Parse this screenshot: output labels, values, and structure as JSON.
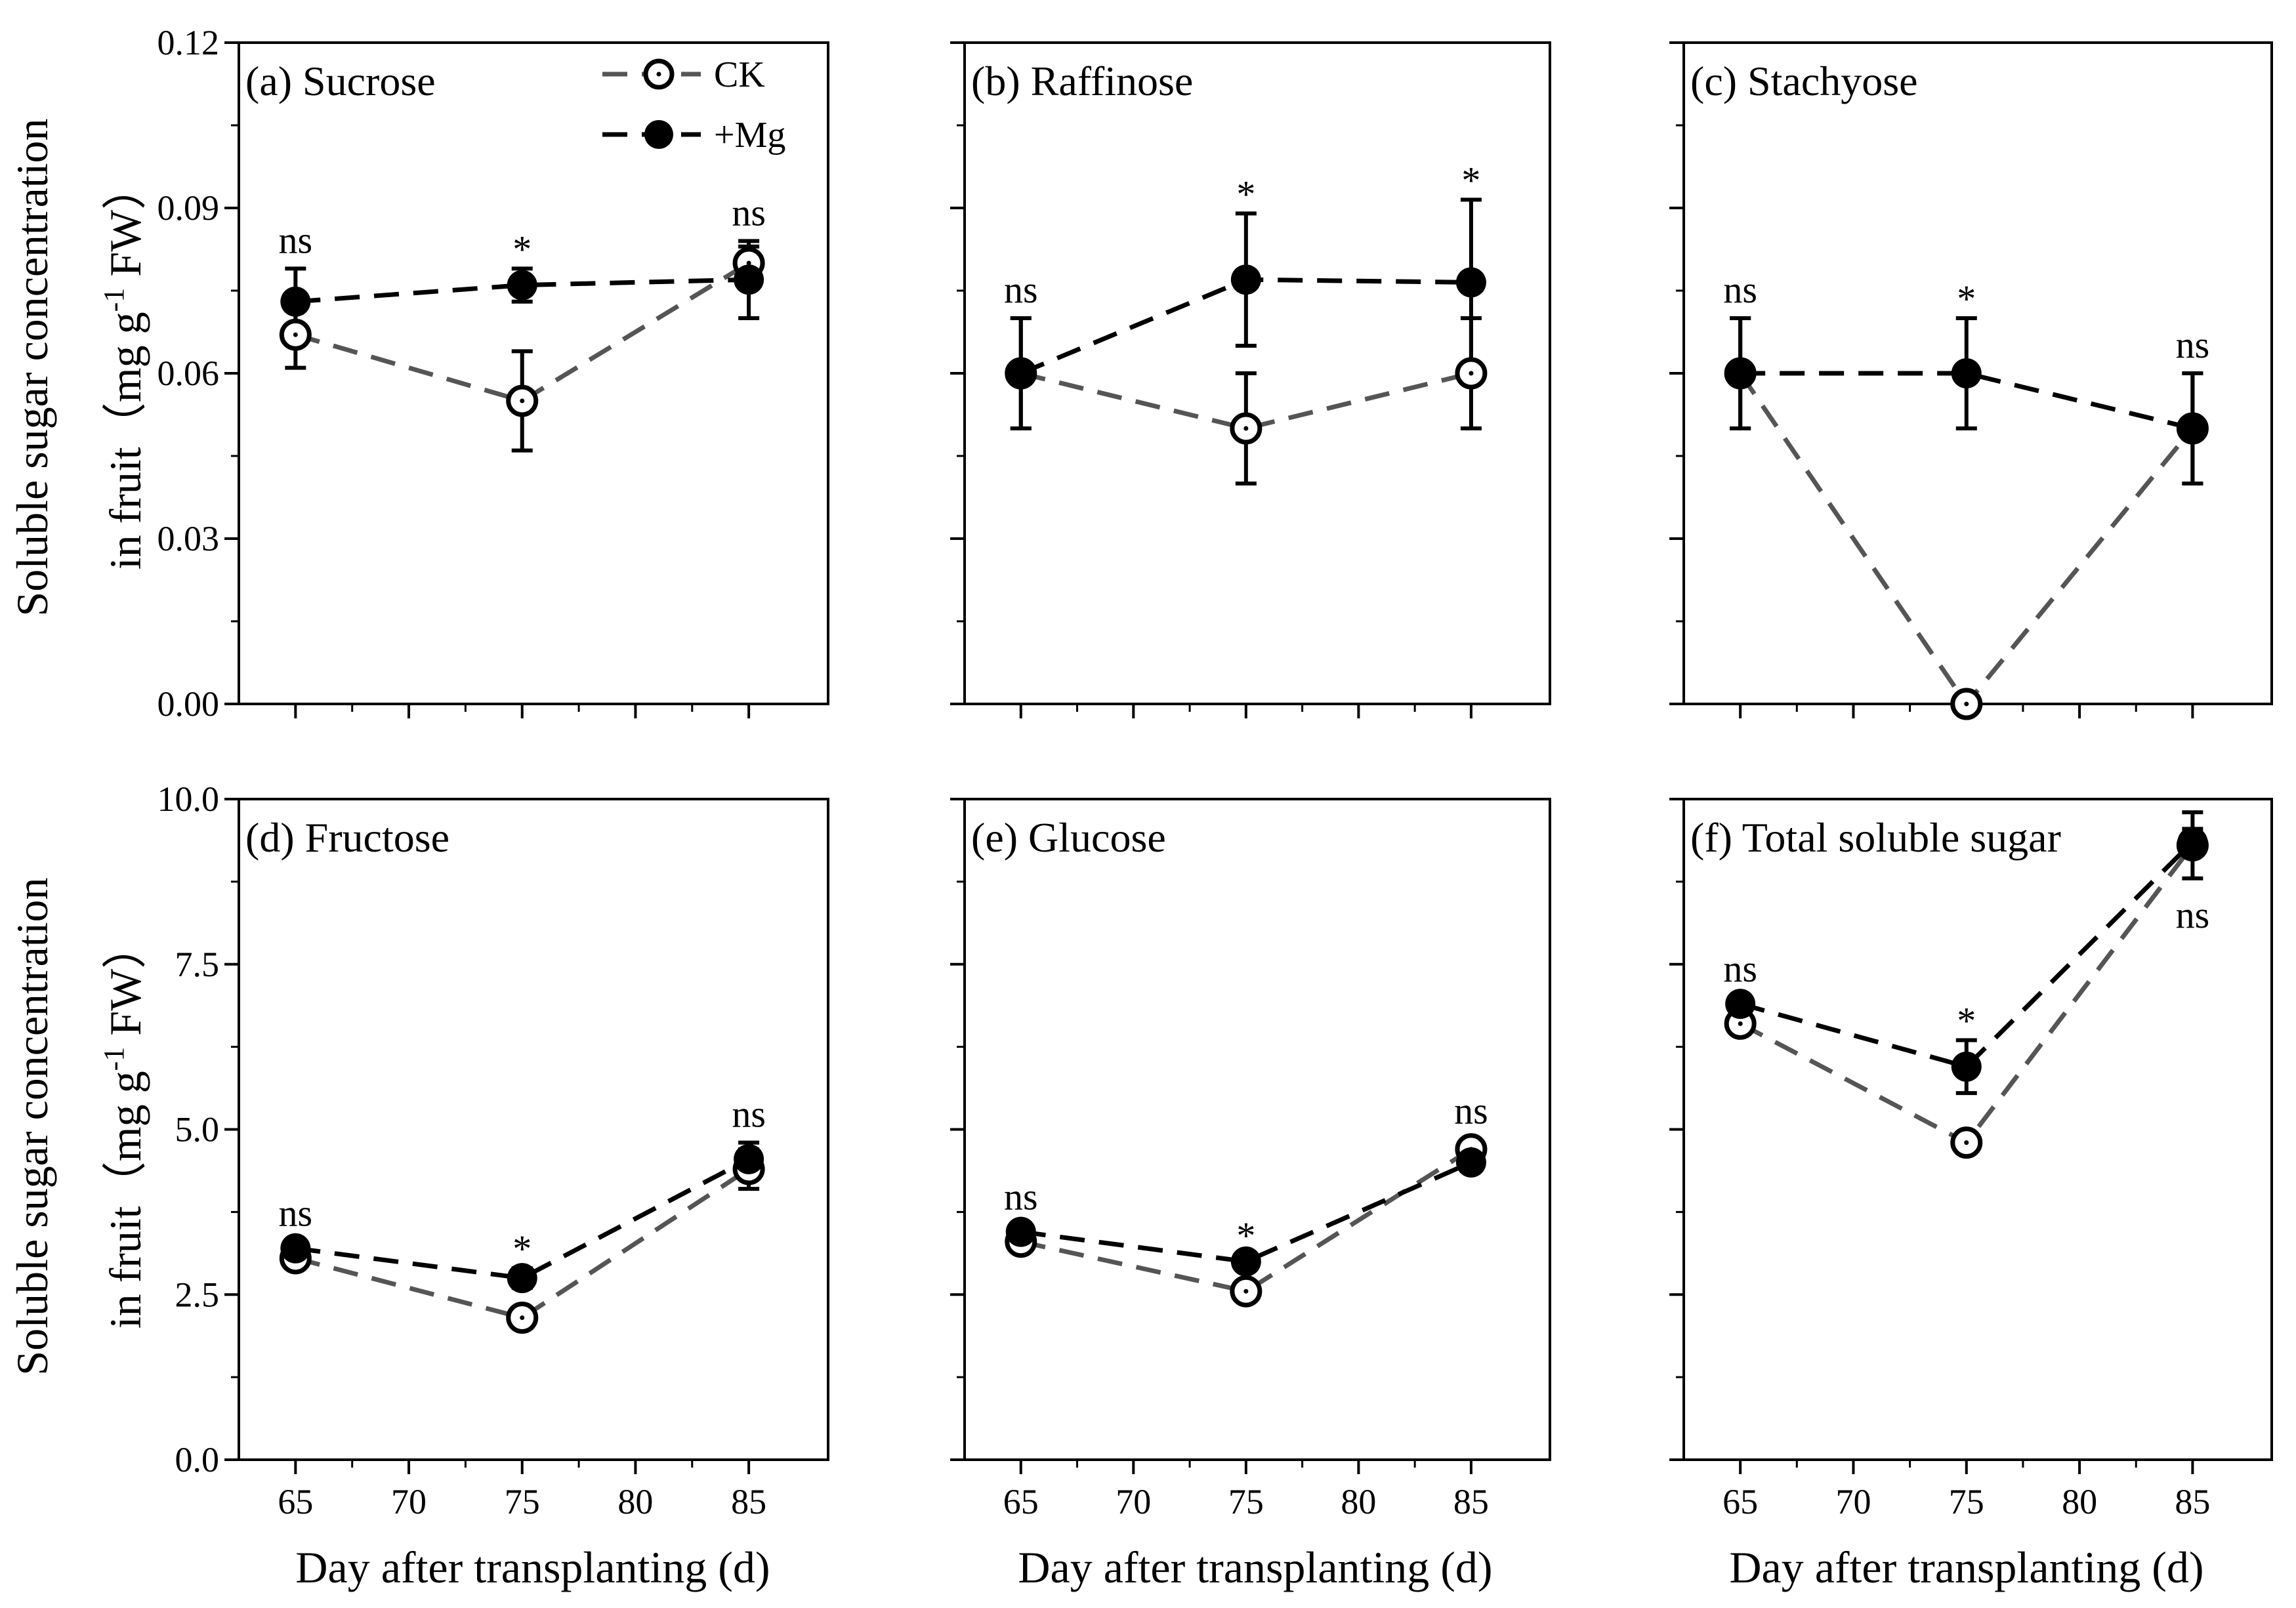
{
  "figure": {
    "ylabel_top": [
      "Soluble sugar concentration",
      "in fruit（mg g",
      "-1",
      " FW）"
    ],
    "ylabel_bottom": [
      "Soluble sugar concentration",
      "in fruit（mg g",
      "-1",
      " FW）"
    ],
    "xlabel": "Day after transplanting (d)",
    "legend": [
      {
        "name": "CK",
        "marker": "open-circle",
        "color": "#555555"
      },
      {
        "name": "+Mg",
        "marker": "filled-circle",
        "color": "#000000"
      }
    ],
    "colors": {
      "ck": "#555555",
      "mg": "#000000",
      "axis": "#000000"
    }
  },
  "chart_data": [
    {
      "id": "a",
      "type": "line",
      "title": "(a) Sucrose",
      "x": [
        65,
        75,
        85
      ],
      "xticks": [
        65,
        70,
        75,
        80,
        85
      ],
      "xlim": [
        62.5,
        88.5
      ],
      "ylim": [
        0,
        0.12
      ],
      "yticks": [
        "0.00",
        "0.03",
        "0.06",
        "0.09",
        "0.12"
      ],
      "series": [
        {
          "name": "CK",
          "values": [
            0.067,
            0.055,
            0.08
          ],
          "err": [
            0.006,
            0.009,
            0.003
          ]
        },
        {
          "name": "+Mg",
          "values": [
            0.073,
            0.076,
            0.077
          ],
          "err": [
            0.006,
            0.003,
            0.007
          ]
        }
      ],
      "significance": [
        "ns",
        "*",
        "ns"
      ]
    },
    {
      "id": "b",
      "type": "line",
      "title": "(b) Raffinose",
      "x": [
        65,
        75,
        85
      ],
      "xticks": [
        65,
        70,
        75,
        80,
        85
      ],
      "xlim": [
        62.5,
        88.5
      ],
      "ylim": [
        0,
        0.12
      ],
      "yticks": [],
      "series": [
        {
          "name": "CK",
          "values": [
            0.06,
            0.05,
            0.06
          ],
          "err": [
            0.01,
            0.01,
            0.01
          ]
        },
        {
          "name": "+Mg",
          "values": [
            0.06,
            0.077,
            0.0765
          ],
          "err": [
            0.01,
            0.012,
            0.015
          ]
        }
      ],
      "significance": [
        "ns",
        "*",
        "*"
      ]
    },
    {
      "id": "c",
      "type": "line",
      "title": "(c) Stachyose",
      "x": [
        65,
        75,
        85
      ],
      "xticks": [
        65,
        70,
        75,
        80,
        85
      ],
      "xlim": [
        62.5,
        88.5
      ],
      "ylim": [
        0,
        0.12
      ],
      "yticks": [],
      "series": [
        {
          "name": "CK",
          "values": [
            0.06,
            0.0,
            0.05
          ],
          "err": [
            0.01,
            0.0,
            0.01
          ]
        },
        {
          "name": "+Mg",
          "values": [
            0.06,
            0.06,
            0.05
          ],
          "err": [
            0.01,
            0.01,
            0.01
          ]
        }
      ],
      "significance": [
        "ns",
        "*",
        "ns"
      ]
    },
    {
      "id": "d",
      "type": "line",
      "title": "(d) Fructose",
      "x": [
        65,
        75,
        85
      ],
      "xticks": [
        65,
        70,
        75,
        80,
        85
      ],
      "xlim": [
        62.5,
        88.5
      ],
      "ylim": [
        0,
        10
      ],
      "yticks": [
        "0.0",
        "2.5",
        "5.0",
        "7.5",
        "10.0"
      ],
      "series": [
        {
          "name": "CK",
          "values": [
            3.05,
            2.15,
            4.4
          ],
          "err": [
            0.1,
            0.15,
            0.3
          ]
        },
        {
          "name": "+Mg",
          "values": [
            3.2,
            2.75,
            4.55
          ],
          "err": [
            0.1,
            0.15,
            0.25
          ]
        }
      ],
      "significance": [
        "ns",
        "*",
        "ns"
      ]
    },
    {
      "id": "e",
      "type": "line",
      "title": "(e) Glucose",
      "x": [
        65,
        75,
        85
      ],
      "xticks": [
        65,
        70,
        75,
        80,
        85
      ],
      "xlim": [
        62.5,
        88.5
      ],
      "ylim": [
        0,
        10
      ],
      "yticks": [],
      "series": [
        {
          "name": "CK",
          "values": [
            3.3,
            2.55,
            4.7
          ],
          "err": [
            0.1,
            0.1,
            0.15
          ]
        },
        {
          "name": "+Mg",
          "values": [
            3.45,
            3.0,
            4.5
          ],
          "err": [
            0.1,
            0.1,
            0.1
          ]
        }
      ],
      "significance": [
        "ns",
        "*",
        "ns"
      ]
    },
    {
      "id": "f",
      "type": "line",
      "title": "(f) Total soluble sugar",
      "x": [
        65,
        75,
        85
      ],
      "xticks": [
        65,
        70,
        75,
        80,
        85
      ],
      "xlim": [
        62.5,
        88.5
      ],
      "ylim": [
        0,
        10
      ],
      "yticks": [],
      "series": [
        {
          "name": "CK",
          "values": [
            6.6,
            4.8,
            9.3
          ],
          "err": [
            0.1,
            0.15,
            0.5
          ]
        },
        {
          "name": "+Mg",
          "values": [
            6.9,
            5.95,
            9.35
          ],
          "err": [
            0.1,
            0.4,
            0.2
          ]
        }
      ],
      "significance": [
        "ns",
        "*",
        "ns"
      ]
    }
  ]
}
